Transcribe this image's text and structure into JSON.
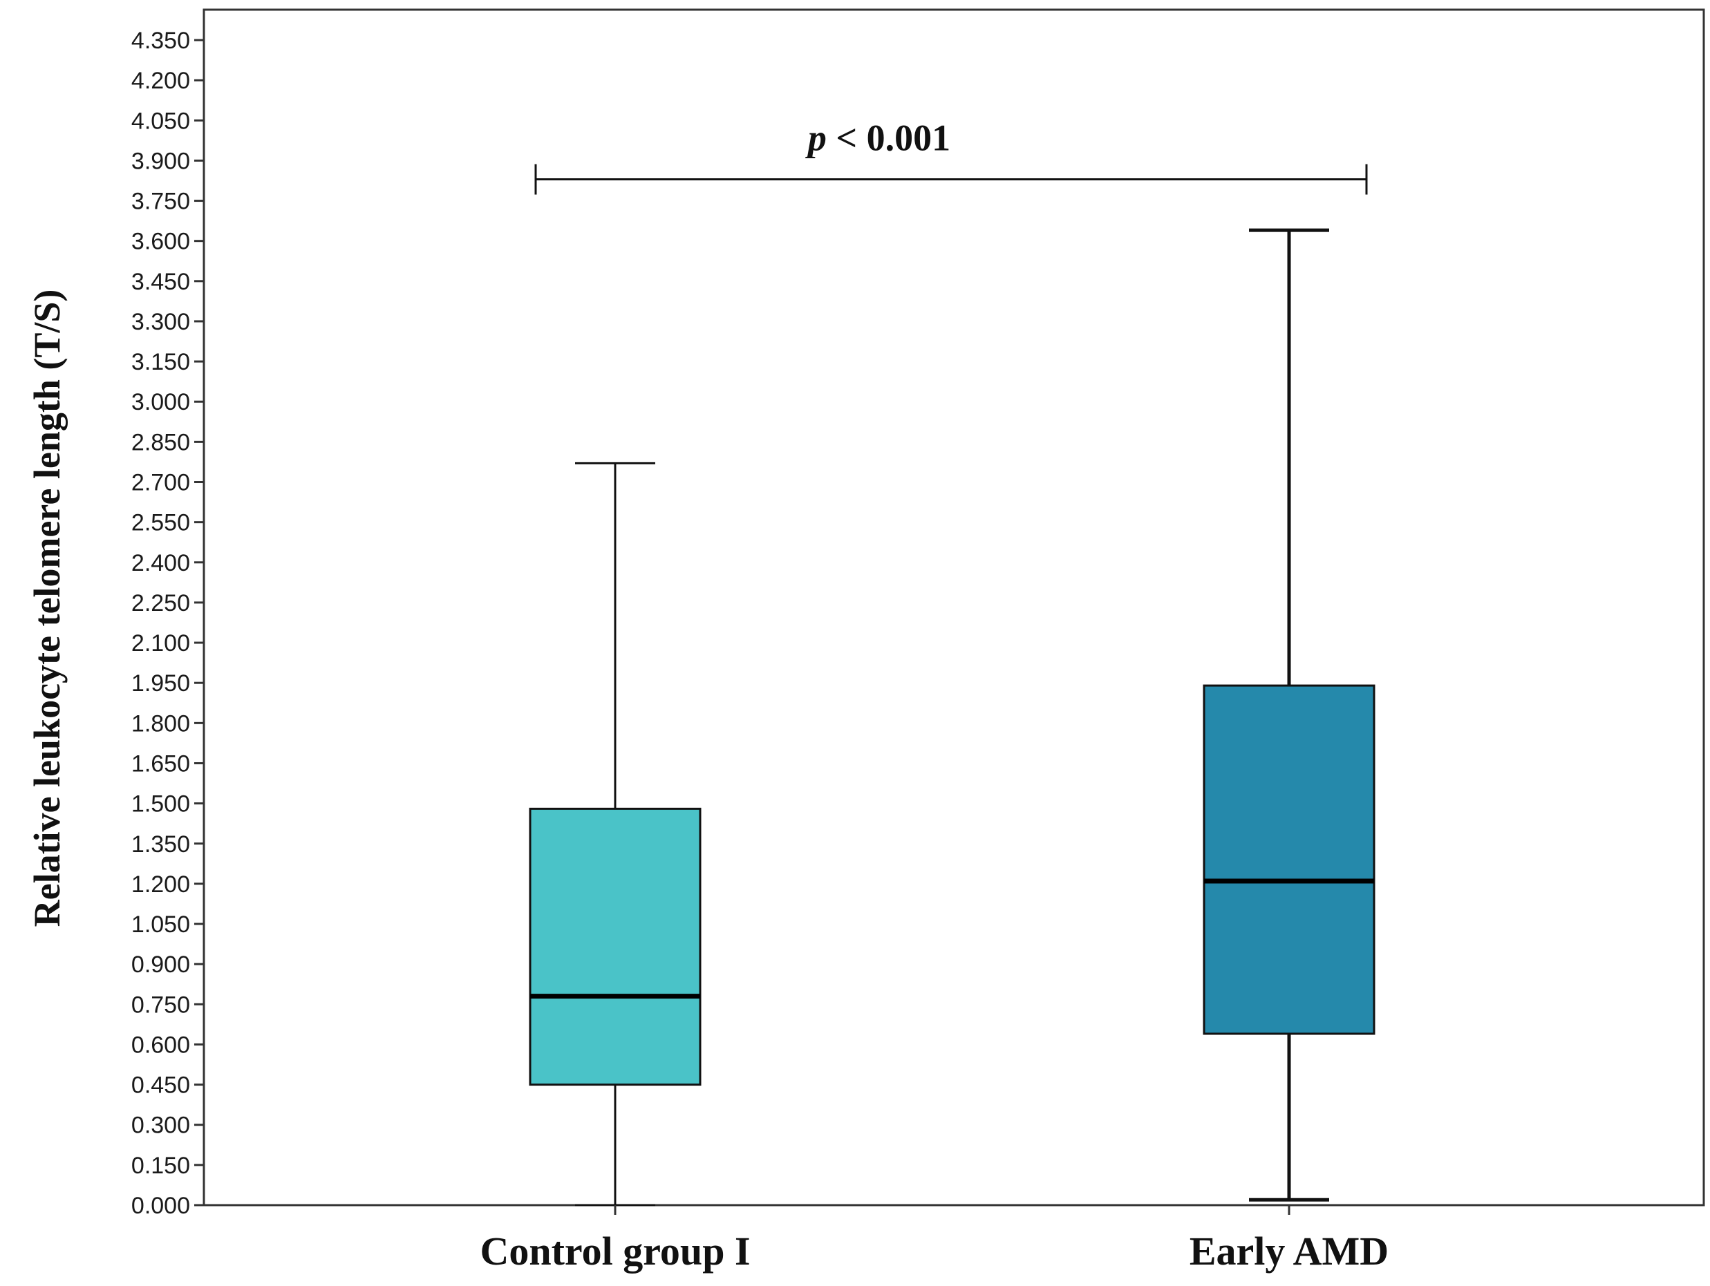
{
  "chart_data": {
    "type": "box",
    "title": "",
    "xlabel": "",
    "ylabel": "Relative leukocyte telomere length (T/S)",
    "ylim": [
      0,
      4.35
    ],
    "y_ticks": [
      "0.000",
      "0.150",
      "0.300",
      "0.450",
      "0.600",
      "0.750",
      "0.900",
      "1.050",
      "1.200",
      "1.350",
      "1.500",
      "1.650",
      "1.800",
      "1.950",
      "2.100",
      "2.250",
      "2.400",
      "2.550",
      "2.700",
      "2.850",
      "3.000",
      "3.150",
      "3.300",
      "3.450",
      "3.600",
      "3.750",
      "3.900",
      "4.050",
      "4.200",
      "4.350"
    ],
    "grid": false,
    "categories": [
      "Control group I",
      "Early AMD"
    ],
    "boxes": [
      {
        "category": "Control group I",
        "min": 0.0,
        "q1": 0.45,
        "median": 0.78,
        "q3": 1.48,
        "max": 2.77,
        "color": "#4AC3C8"
      },
      {
        "category": "Early AMD",
        "min": 0.02,
        "q1": 0.64,
        "median": 1.21,
        "q3": 1.94,
        "max": 3.64,
        "color": "#2589AB"
      }
    ],
    "annotation": {
      "p_symbol": "p",
      "text": " < 0.001",
      "bracket_y": 3.83
    }
  }
}
